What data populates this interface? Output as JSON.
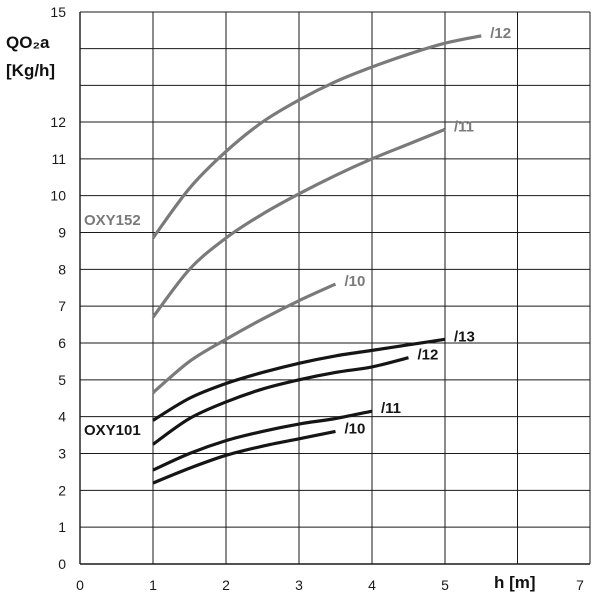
{
  "chart_data": {
    "type": "line",
    "ylabel_line1": "QO₂a",
    "ylabel_line2": "[Kg/h]",
    "xlabel": "h [m]",
    "xlim": [
      0,
      7
    ],
    "ylim": [
      0,
      15
    ],
    "x_ticks": [
      "0",
      "1",
      "2",
      "3",
      "4",
      "5",
      "7"
    ],
    "y_ticks": [
      "0",
      "1",
      "2",
      "3",
      "4",
      "5",
      "6",
      "7",
      "8",
      "9",
      "10",
      "11",
      "12",
      "15"
    ],
    "grid": true,
    "groups": [
      {
        "name": "OXY152",
        "color": "#7a7a7a"
      },
      {
        "name": "OXY101",
        "color": "#151515"
      }
    ],
    "series": [
      {
        "name": "/12",
        "group": "OXY152",
        "color": "#7a7a7a",
        "points": [
          [
            1,
            8.85
          ],
          [
            1.5,
            10.2
          ],
          [
            2,
            11.2
          ],
          [
            2.5,
            12.0
          ],
          [
            3,
            12.6
          ],
          [
            3.5,
            13.1
          ],
          [
            4,
            13.5
          ],
          [
            4.5,
            13.85
          ],
          [
            5,
            14.15
          ],
          [
            5.5,
            14.35
          ]
        ]
      },
      {
        "name": "/11",
        "group": "OXY152",
        "color": "#7a7a7a",
        "points": [
          [
            1,
            6.7
          ],
          [
            1.5,
            8.0
          ],
          [
            2,
            8.85
          ],
          [
            2.5,
            9.5
          ],
          [
            3,
            10.05
          ],
          [
            3.5,
            10.55
          ],
          [
            4,
            11.0
          ],
          [
            4.5,
            11.4
          ],
          [
            5,
            11.8
          ]
        ]
      },
      {
        "name": "/10",
        "group": "OXY152",
        "color": "#7a7a7a",
        "points": [
          [
            1,
            4.65
          ],
          [
            1.5,
            5.5
          ],
          [
            2,
            6.1
          ],
          [
            2.5,
            6.65
          ],
          [
            3,
            7.15
          ],
          [
            3.5,
            7.6
          ]
        ]
      },
      {
        "name": "/13",
        "group": "OXY101",
        "color": "#151515",
        "points": [
          [
            1,
            3.9
          ],
          [
            1.5,
            4.5
          ],
          [
            2,
            4.9
          ],
          [
            2.5,
            5.2
          ],
          [
            3,
            5.45
          ],
          [
            3.5,
            5.65
          ],
          [
            4,
            5.8
          ],
          [
            4.5,
            5.95
          ],
          [
            5,
            6.1
          ]
        ]
      },
      {
        "name": "/12",
        "group": "OXY101",
        "color": "#151515",
        "points": [
          [
            1,
            3.25
          ],
          [
            1.5,
            3.95
          ],
          [
            2,
            4.4
          ],
          [
            2.5,
            4.75
          ],
          [
            3,
            5.0
          ],
          [
            3.5,
            5.2
          ],
          [
            4,
            5.35
          ],
          [
            4.5,
            5.6
          ]
        ]
      },
      {
        "name": "/11",
        "group": "OXY101",
        "color": "#151515",
        "points": [
          [
            1,
            2.55
          ],
          [
            1.5,
            3.0
          ],
          [
            2,
            3.35
          ],
          [
            2.5,
            3.6
          ],
          [
            3,
            3.8
          ],
          [
            3.5,
            3.95
          ],
          [
            4,
            4.15
          ]
        ]
      },
      {
        "name": "/10",
        "group": "OXY101",
        "color": "#151515",
        "points": [
          [
            1,
            2.2
          ],
          [
            1.5,
            2.6
          ],
          [
            2,
            2.95
          ],
          [
            2.5,
            3.2
          ],
          [
            3,
            3.4
          ],
          [
            3.5,
            3.6
          ]
        ]
      }
    ]
  }
}
